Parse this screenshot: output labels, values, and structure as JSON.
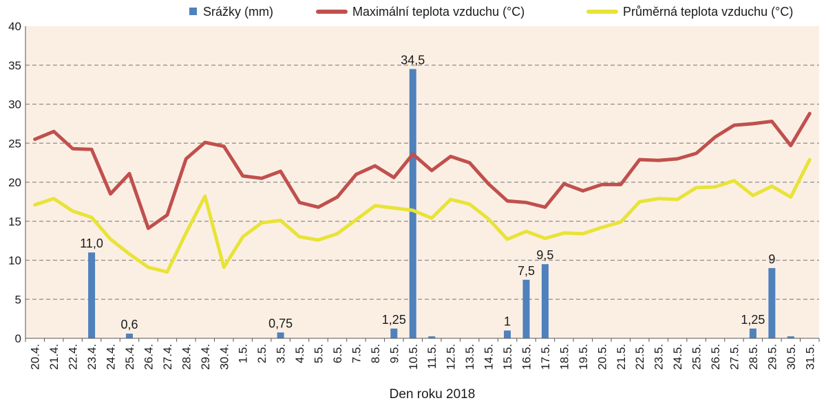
{
  "chart_data": {
    "type": "bar+line",
    "title": "",
    "xlabel": "Den roku 2018",
    "ylabel": "",
    "ylim": [
      0,
      40
    ],
    "yticks": [
      0,
      5,
      10,
      15,
      20,
      25,
      30,
      35,
      40
    ],
    "categories": [
      "20.4.",
      "21.4.",
      "22.4.",
      "23.4.",
      "24.4.",
      "25.4.",
      "26.4.",
      "27.4.",
      "28.4.",
      "29.4.",
      "30.4.",
      "1.5.",
      "2.5.",
      "3.5.",
      "4.5.",
      "5.5.",
      "6.5.",
      "7.5.",
      "8.5.",
      "9.5.",
      "10.5.",
      "11.5.",
      "12.5.",
      "13.5.",
      "14.5.",
      "15.5.",
      "16.5.",
      "17.5.",
      "18.5.",
      "19.5.",
      "20.5.",
      "21.5.",
      "22.5.",
      "23.5.",
      "24.5.",
      "25.5.",
      "26.5.",
      "27.5.",
      "28.5.",
      "29.5.",
      "30.5.",
      "31.5."
    ],
    "series": [
      {
        "name": "Srážky (mm)",
        "kind": "bar",
        "color": "#4f81bd",
        "values": [
          0,
          0,
          0,
          11,
          0,
          0.6,
          0,
          0,
          0,
          0,
          0,
          0,
          0,
          0.75,
          0,
          0,
          0,
          0,
          0,
          1.25,
          34.5,
          0.25,
          0,
          0,
          0,
          1,
          7.5,
          9.5,
          0,
          0,
          0,
          0,
          0,
          0,
          0,
          0,
          0,
          0,
          1.25,
          9,
          0.25,
          0
        ],
        "labels": [
          "",
          "",
          "",
          "11,0",
          "",
          "0,6",
          "",
          "",
          "",
          "",
          "",
          "",
          "",
          "0,75",
          "",
          "",
          "",
          "",
          "",
          "1,25",
          "34,5",
          "",
          "",
          "",
          "",
          "1",
          "7,5",
          "9,5",
          "",
          "",
          "",
          "",
          "",
          "",
          "",
          "",
          "",
          "",
          "1,25",
          "9",
          "",
          ""
        ]
      },
      {
        "name": "Maximální teplota vzduchu (°C)",
        "kind": "line",
        "color": "#c0504d",
        "values": [
          25.5,
          26.5,
          24.3,
          24.2,
          18.5,
          21.1,
          14.1,
          15.8,
          23,
          25.1,
          24.6,
          20.8,
          20.5,
          21.4,
          17.4,
          16.8,
          18.1,
          21,
          22.1,
          20.6,
          23.6,
          21.5,
          23.3,
          22.5,
          19.8,
          17.6,
          17.4,
          16.8,
          19.8,
          18.9,
          19.7,
          19.7,
          22.9,
          22.8,
          23,
          23.7,
          25.8,
          27.3,
          27.5,
          27.8,
          24.7,
          28.8
        ]
      },
      {
        "name": "Průměrná teplota vzduchu (°C)",
        "kind": "line",
        "color": "#e8e337",
        "values": [
          17.1,
          17.9,
          16.3,
          15.5,
          12.7,
          10.8,
          9.1,
          8.5,
          13.5,
          18.2,
          9.1,
          13,
          14.8,
          15.1,
          13,
          12.6,
          13.4,
          15.2,
          17,
          16.7,
          16.4,
          15.4,
          17.8,
          17.2,
          15.3,
          12.7,
          13.7,
          12.8,
          13.5,
          13.4,
          14.2,
          14.9,
          17.5,
          17.9,
          17.8,
          19.3,
          19.4,
          20.2,
          18.3,
          19.5,
          18.1,
          22.9
        ]
      }
    ],
    "grid": true,
    "background": "#fbefe4",
    "legend_position": "top"
  }
}
